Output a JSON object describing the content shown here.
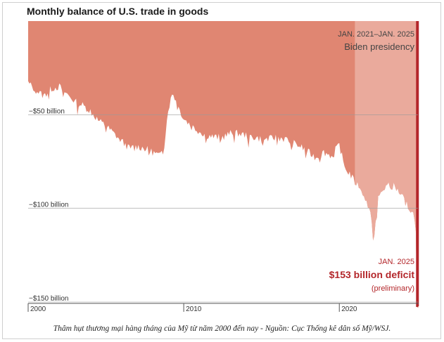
{
  "chart_data": {
    "type": "area",
    "title": "Monthly balance of U.S. trade in goods",
    "ylabel": "",
    "xlabel": "",
    "ylim": [
      -150,
      0
    ],
    "xlim": [
      2000.0,
      2025.1
    ],
    "yticks": [
      {
        "value": -50,
        "label": "−$50 billion"
      },
      {
        "value": -100,
        "label": "−$100 billion"
      },
      {
        "value": -150,
        "label": "−$150 billion"
      }
    ],
    "xticks": [
      {
        "value": 2000,
        "label": "2000"
      },
      {
        "value": 2010,
        "label": "2010"
      },
      {
        "value": 2020,
        "label": "2020"
      }
    ],
    "grid": true,
    "colors": {
      "main": "#e08672",
      "highlight": "#eaaa9c",
      "accent": "#b3262a"
    },
    "highlight_period": {
      "start": 2021.0,
      "end": 2025.1,
      "label_line1": "JAN. 2021–JAN. 2025",
      "label_line2": "Biden presidency"
    },
    "annotation": {
      "line1": "JAN. 2025",
      "line2": "$153 billion deficit",
      "line3": "(preliminary)"
    },
    "series": [
      {
        "points": [
          [
            2000.0,
            -33
          ],
          [
            2000.5,
            -37
          ],
          [
            2001.0,
            -40
          ],
          [
            2001.5,
            -36
          ],
          [
            2002.0,
            -35
          ],
          [
            2002.5,
            -39
          ],
          [
            2003.0,
            -43
          ],
          [
            2003.5,
            -45
          ],
          [
            2004.0,
            -48
          ],
          [
            2004.5,
            -53
          ],
          [
            2005.0,
            -56
          ],
          [
            2005.5,
            -60
          ],
          [
            2006.0,
            -64
          ],
          [
            2006.5,
            -68
          ],
          [
            2007.0,
            -67
          ],
          [
            2007.5,
            -68
          ],
          [
            2008.0,
            -70
          ],
          [
            2008.5,
            -72
          ],
          [
            2008.75,
            -66
          ],
          [
            2009.0,
            -47
          ],
          [
            2009.3,
            -38
          ],
          [
            2009.6,
            -45
          ],
          [
            2010.0,
            -52
          ],
          [
            2010.5,
            -56
          ],
          [
            2011.0,
            -59
          ],
          [
            2011.5,
            -61
          ],
          [
            2012.0,
            -62
          ],
          [
            2012.5,
            -62
          ],
          [
            2013.0,
            -60
          ],
          [
            2013.5,
            -60
          ],
          [
            2014.0,
            -61
          ],
          [
            2014.5,
            -62
          ],
          [
            2015.0,
            -63
          ],
          [
            2015.5,
            -63
          ],
          [
            2016.0,
            -62
          ],
          [
            2016.5,
            -63
          ],
          [
            2017.0,
            -65
          ],
          [
            2017.5,
            -67
          ],
          [
            2018.0,
            -70
          ],
          [
            2018.5,
            -73
          ],
          [
            2019.0,
            -70
          ],
          [
            2019.5,
            -72
          ],
          [
            2020.0,
            -66
          ],
          [
            2020.3,
            -77
          ],
          [
            2020.7,
            -82
          ],
          [
            2021.0,
            -86
          ],
          [
            2021.5,
            -90
          ],
          [
            2022.0,
            -103
          ],
          [
            2022.2,
            -118
          ],
          [
            2022.5,
            -94
          ],
          [
            2023.0,
            -88
          ],
          [
            2023.5,
            -88
          ],
          [
            2024.0,
            -93
          ],
          [
            2024.5,
            -100
          ],
          [
            2024.9,
            -105
          ],
          [
            2025.0,
            -153
          ],
          [
            2025.1,
            -153
          ]
        ]
      }
    ]
  },
  "caption": "Thâm hụt thương mại hàng tháng của Mỹ từ năm 2000 đến nay - Nguồn: Cục Thống kê dân số Mỹ/WSJ."
}
